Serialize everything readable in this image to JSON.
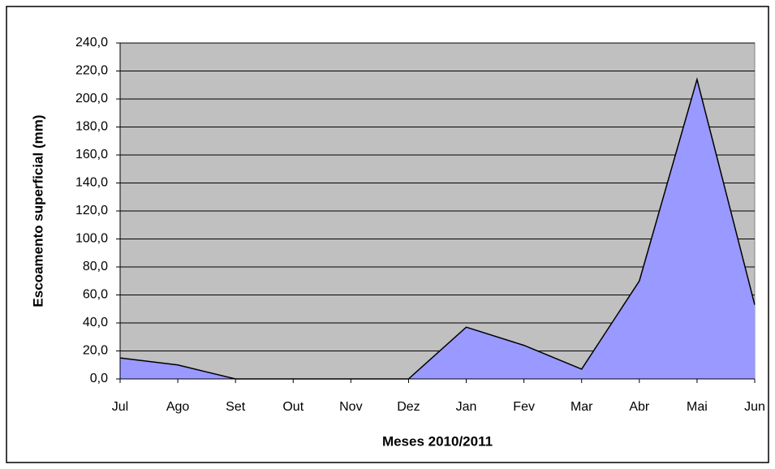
{
  "chart_data": {
    "type": "area",
    "x_label": "Meses 2010/2011",
    "y_label": "Escoamento superficial (mm)",
    "categories": [
      "Jul",
      "Ago",
      "Set",
      "Out",
      "Nov",
      "Dez",
      "Jan",
      "Fev",
      "Mar",
      "Abr",
      "Mai",
      "Jun"
    ],
    "values": [
      15,
      10,
      0,
      0,
      0,
      0,
      37,
      24,
      7,
      70,
      214,
      53
    ],
    "color": "#9999ff",
    "ylim": [
      0,
      240
    ],
    "yticks": [
      {
        "value": 0,
        "label": "0,0"
      },
      {
        "value": 20,
        "label": "20,0"
      },
      {
        "value": 40,
        "label": "40,0"
      },
      {
        "value": 60,
        "label": "60,0"
      },
      {
        "value": 80,
        "label": "80,0"
      },
      {
        "value": 100,
        "label": "100,0"
      },
      {
        "value": 120,
        "label": "120,0"
      },
      {
        "value": 140,
        "label": "140,0"
      },
      {
        "value": 160,
        "label": "160,0"
      },
      {
        "value": 180,
        "label": "180,0"
      },
      {
        "value": 200,
        "label": "200,0"
      },
      {
        "value": 220,
        "label": "220,0"
      },
      {
        "value": 240,
        "label": "240,0"
      }
    ],
    "grid": true
  }
}
